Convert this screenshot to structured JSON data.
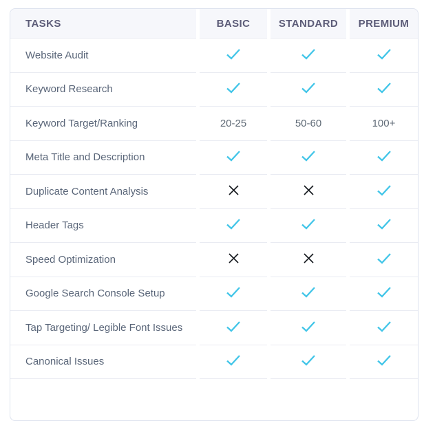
{
  "table": {
    "columns": [
      "TASKS",
      "BASIC",
      "STANDARD",
      "PREMIUM"
    ],
    "rows": [
      {
        "task": "Website Audit",
        "basic": "check",
        "standard": "check",
        "premium": "check"
      },
      {
        "task": "Keyword Research",
        "basic": "check",
        "standard": "check",
        "premium": "check"
      },
      {
        "task": "Keyword Target/Ranking",
        "basic": "20-25",
        "standard": "50-60",
        "premium": "100+"
      },
      {
        "task": "Meta Title and Description",
        "basic": "check",
        "standard": "check",
        "premium": "check"
      },
      {
        "task": "Duplicate Content Analysis",
        "basic": "cross",
        "standard": "cross",
        "premium": "check"
      },
      {
        "task": "Header Tags",
        "basic": "check",
        "standard": "check",
        "premium": "check"
      },
      {
        "task": "Speed Optimization",
        "basic": "cross",
        "standard": "cross",
        "premium": "check"
      },
      {
        "task": "Google Search Console Setup",
        "basic": "check",
        "standard": "check",
        "premium": "check"
      },
      {
        "task": "Tap Targeting/ Legible Font Issues",
        "basic": "check",
        "standard": "check",
        "premium": "check"
      },
      {
        "task": "Canonical Issues",
        "basic": "check",
        "standard": "check",
        "premium": "check"
      }
    ],
    "icons": {
      "check": "check-icon",
      "cross": "x-icon"
    },
    "colors": {
      "check": "#41c5e8",
      "cross": "#14181d",
      "header_bg": "#f6f7fb",
      "header_text": "#5c5c78",
      "task_text": "#5a6679",
      "value_text": "#5f6a76",
      "divider": "#e9ebf2",
      "card_border": "#dde2ee"
    }
  }
}
